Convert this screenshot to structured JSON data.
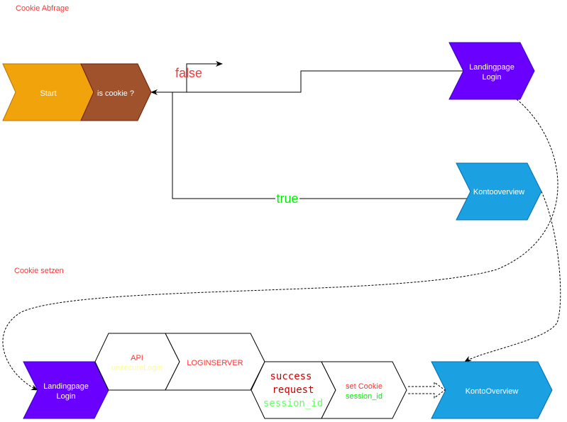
{
  "sections": {
    "top": "Cookie Abfrage",
    "bottom": "Cookie setzen"
  },
  "nodes": {
    "start": "Start",
    "is_cookie": "is cookie ?",
    "landing_top": [
      "Landingpage",
      "Login"
    ],
    "konto_top": "Kontooverview",
    "landing_bottom": [
      "Landingpage",
      "Login"
    ],
    "api": [
      "API",
      "unsecureLogin"
    ],
    "loginserver": "LOGINSERVER",
    "success": [
      "success",
      "request",
      "session_id"
    ],
    "set_cookie": [
      "set Cookie",
      "session_id"
    ],
    "konto_bottom": "KontoOverview"
  },
  "edges": {
    "false_label": "false",
    "true_label": "true"
  },
  "colors": {
    "start": "#f0a30a",
    "is_cookie": "#a0522d",
    "landing": "#6a00ff",
    "konto": "#1ba1e2",
    "label_red": "#ff3333",
    "label_green": "#00ff00"
  }
}
